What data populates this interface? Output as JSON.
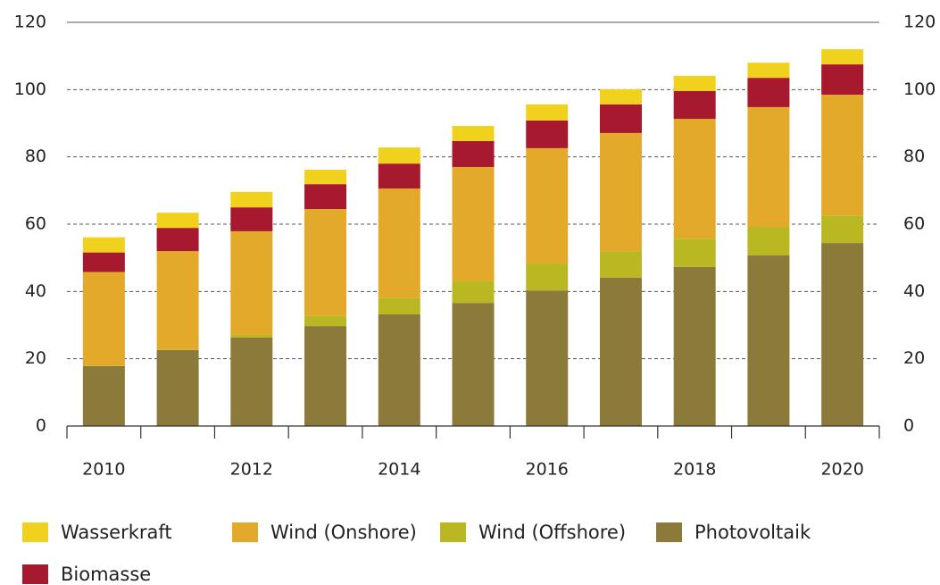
{
  "chart_data": {
    "type": "stacked_bar",
    "categories": [
      "2010",
      null,
      "2012",
      null,
      "2014",
      null,
      "2016",
      null,
      "2018",
      null,
      "2020"
    ],
    "series": [
      {
        "name": "Wasserkraft",
        "color": "#f0d21e",
        "values": [
          4.5,
          4.5,
          4.6,
          4.3,
          4.8,
          4.5,
          4.8,
          4.5,
          4.5,
          4.5,
          4.5
        ]
      },
      {
        "name": "Wind (Onshore)",
        "color": "#e3a92a",
        "values": [
          27.9,
          29.2,
          30.8,
          31.8,
          32.6,
          34.0,
          34.3,
          35.1,
          35.6,
          35.6,
          35.9
        ]
      },
      {
        "name": "Wind (Offshore)",
        "color": "#b9b823",
        "values": [
          0.1,
          0.2,
          0.8,
          3.0,
          4.8,
          6.4,
          8.0,
          7.9,
          8.4,
          8.5,
          8.2
        ]
      },
      {
        "name": "Photovoltaik",
        "color": "#8b7a3a",
        "values": [
          17.8,
          22.6,
          26.3,
          29.7,
          33.2,
          36.6,
          40.3,
          44.1,
          47.3,
          50.7,
          54.4
        ]
      },
      {
        "name": "Biomasse",
        "color": "#a6192e",
        "values": [
          5.8,
          6.9,
          7.1,
          7.4,
          7.4,
          7.7,
          8.2,
          8.5,
          8.3,
          8.7,
          9.0
        ]
      }
    ],
    "ylim": [
      0,
      120
    ],
    "yticks": [
      0,
      20,
      40,
      60,
      80,
      100,
      120
    ],
    "grid": true
  }
}
